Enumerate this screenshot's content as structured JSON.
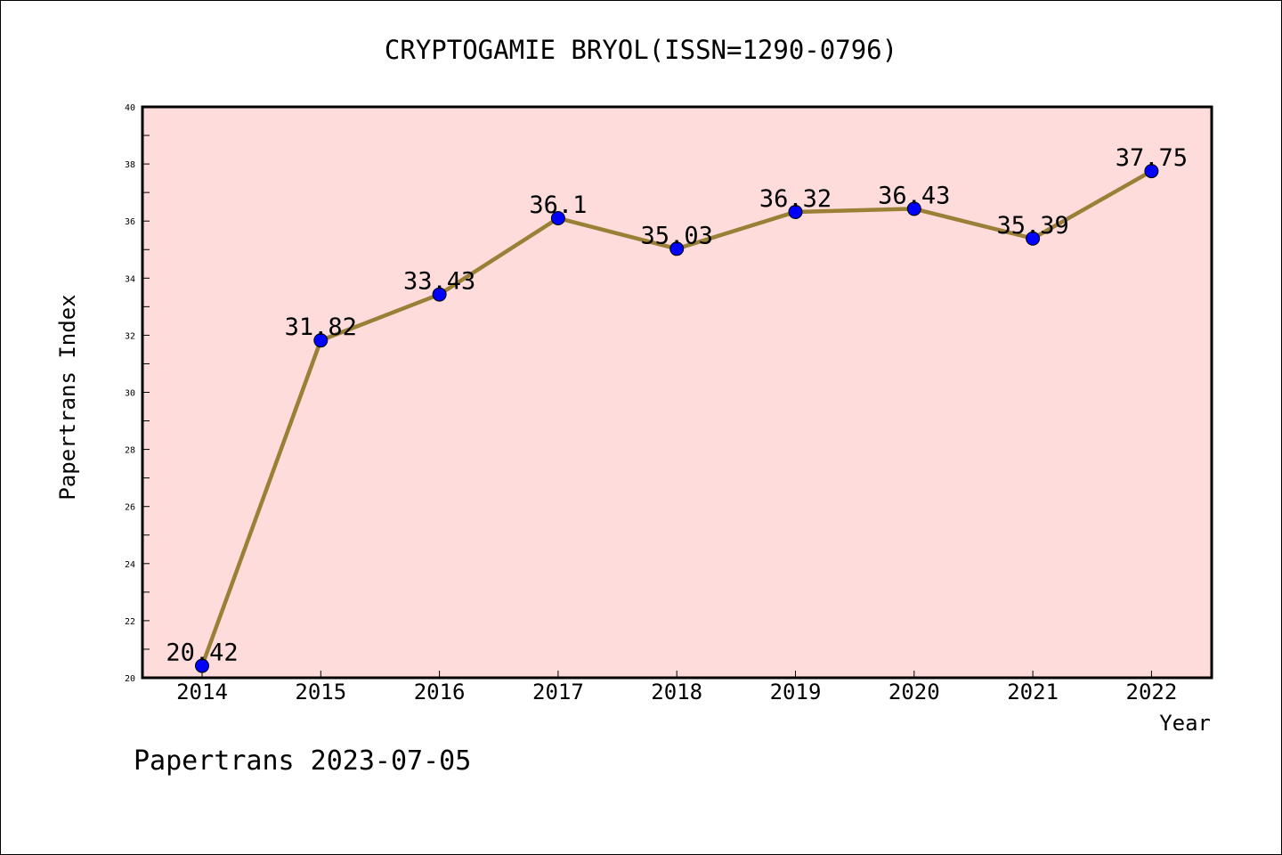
{
  "chart_data": {
    "type": "line",
    "title": "CRYPTOGAMIE BRYOL(ISSN=1290-0796)",
    "xlabel": "Year",
    "ylabel": "Papertrans Index",
    "categories": [
      "2014",
      "2015",
      "2016",
      "2017",
      "2018",
      "2019",
      "2020",
      "2021",
      "2022"
    ],
    "series": [
      {
        "values": [
          20.42,
          31.82,
          33.43,
          36.1,
          35.03,
          36.32,
          36.43,
          35.39,
          37.75
        ],
        "labels": [
          "20.42",
          "31.82",
          "33.43",
          "36.1",
          "35.03",
          "36.32",
          "36.43",
          "35.39",
          "37.75"
        ]
      }
    ],
    "ylim": [
      20,
      40
    ],
    "yticks": [
      "20",
      "22",
      "24",
      "26",
      "28",
      "30",
      "32",
      "34",
      "36",
      "38",
      "40"
    ],
    "grid": false,
    "colors": {
      "plot_background": "#ffdcdc",
      "line": "#9a8036",
      "marker": "#0000ff"
    }
  },
  "footer": {
    "watermark": "Papertrans 2023-07-05"
  }
}
